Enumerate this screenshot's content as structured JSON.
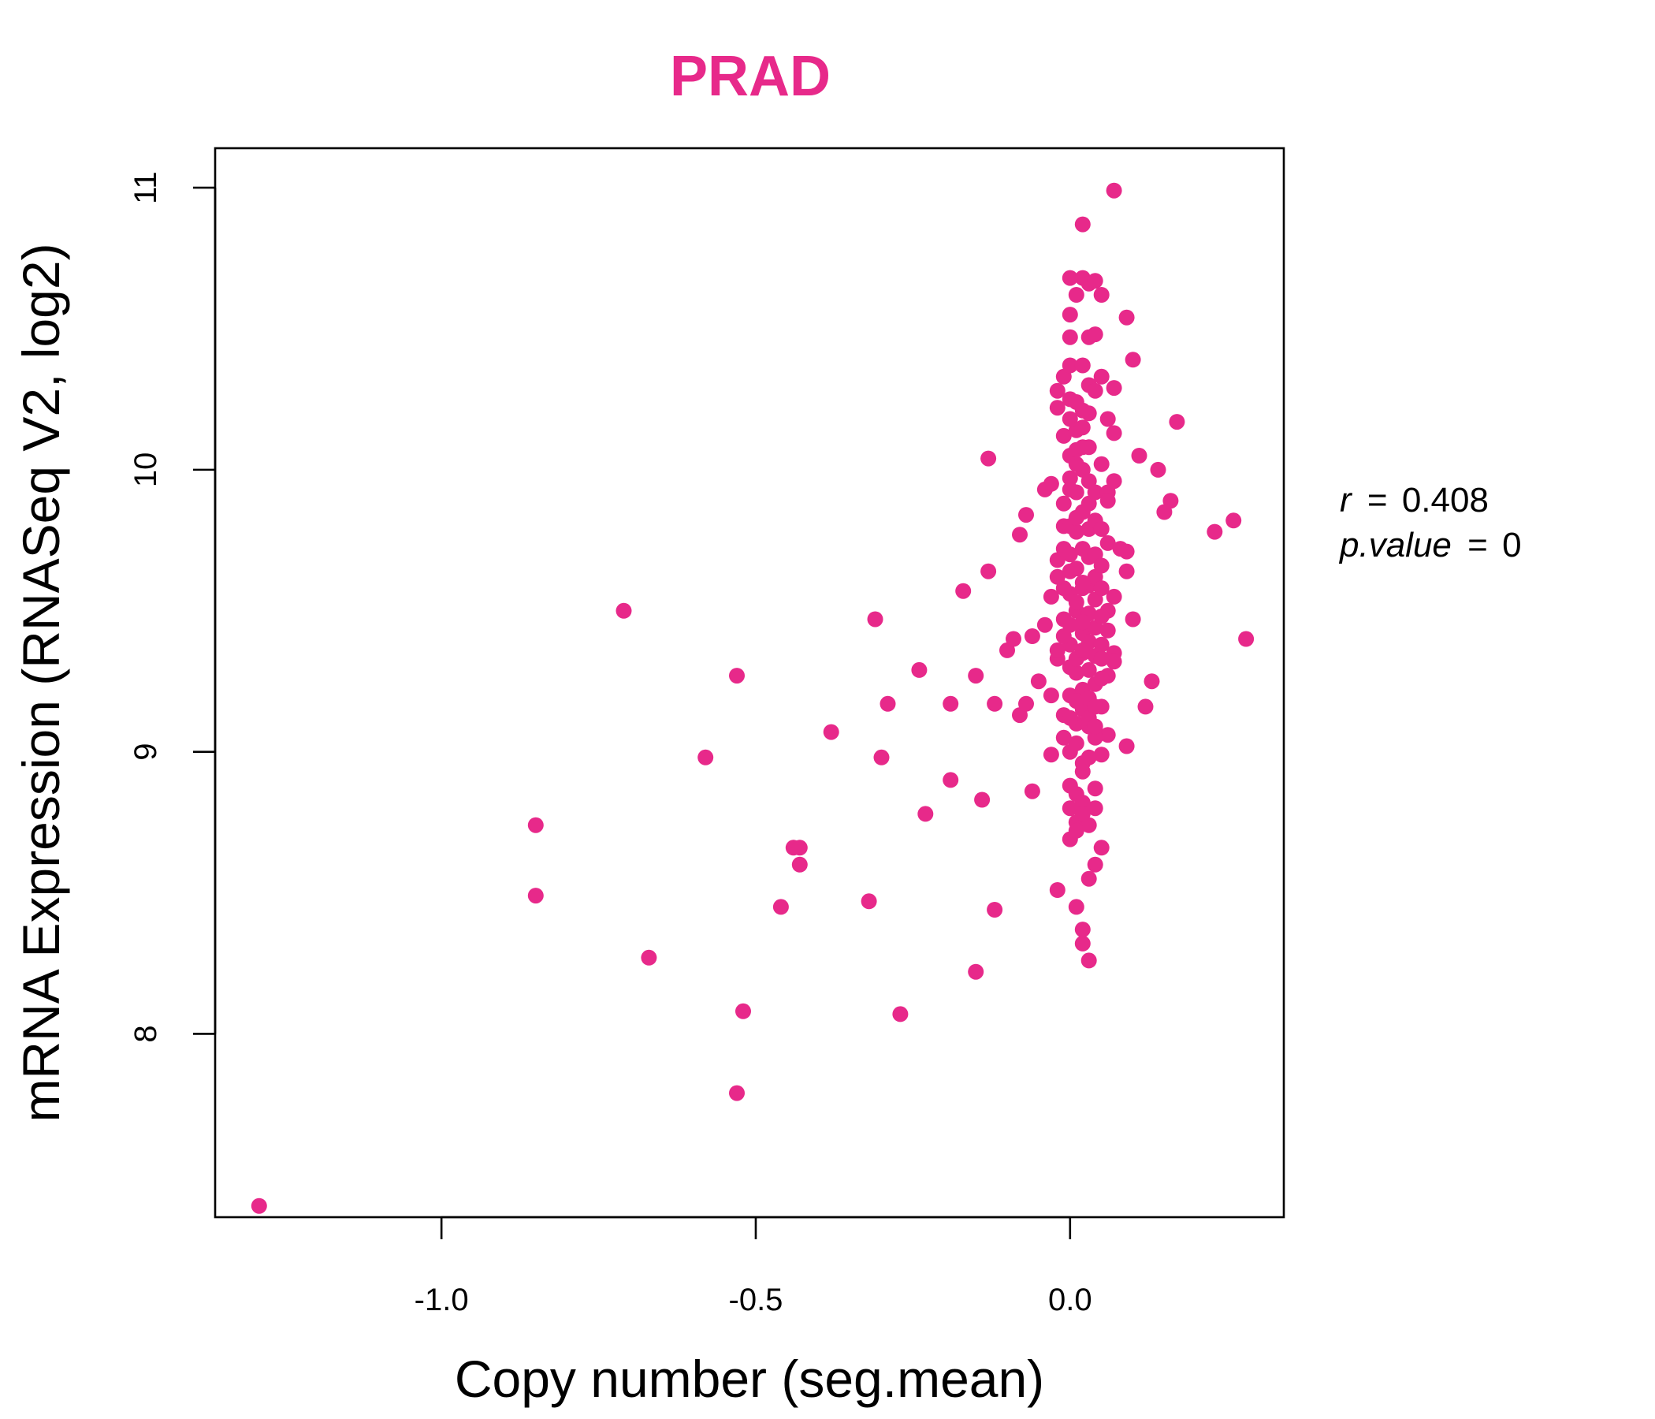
{
  "chart_data": {
    "type": "scatter",
    "title": "PRAD",
    "xlabel": "Copy number (seg.mean)",
    "ylabel": "mRNA Expression (RNASeq V2, log2)",
    "xlim": [
      -1.36,
      0.34
    ],
    "ylim": [
      7.35,
      11.14
    ],
    "xticks": [
      {
        "value": -1.0,
        "label": "-1.0"
      },
      {
        "value": -0.5,
        "label": "-0.5"
      },
      {
        "value": 0.0,
        "label": "0.0"
      }
    ],
    "yticks": [
      {
        "value": 8,
        "label": "8"
      },
      {
        "value": 9,
        "label": "9"
      },
      {
        "value": 10,
        "label": "10"
      },
      {
        "value": 11,
        "label": "11"
      }
    ],
    "grid": false,
    "legend": "none",
    "stats": {
      "r_symbol": "r",
      "r_value": "0.408",
      "p_symbol": "p.value",
      "p_value": "0"
    },
    "colors": {
      "points": "#E7298A",
      "title": "#E7298A",
      "axis": "#000000"
    },
    "series": [
      {
        "color": "#E7298A",
        "points": [
          [
            -1.29,
            7.39
          ],
          [
            -0.85,
            8.74
          ],
          [
            -0.85,
            8.49
          ],
          [
            -0.71,
            9.5
          ],
          [
            -0.67,
            8.27
          ],
          [
            -0.58,
            8.98
          ],
          [
            -0.53,
            9.27
          ],
          [
            -0.52,
            8.08
          ],
          [
            -0.53,
            7.79
          ],
          [
            -0.46,
            8.45
          ],
          [
            -0.44,
            8.66
          ],
          [
            -0.43,
            8.66
          ],
          [
            -0.43,
            8.6
          ],
          [
            -0.38,
            9.07
          ],
          [
            -0.32,
            8.47
          ],
          [
            -0.31,
            9.47
          ],
          [
            -0.3,
            8.98
          ],
          [
            -0.29,
            9.17
          ],
          [
            -0.27,
            8.07
          ],
          [
            -0.24,
            9.29
          ],
          [
            -0.23,
            8.78
          ],
          [
            -0.19,
            9.17
          ],
          [
            -0.19,
            8.9
          ],
          [
            -0.17,
            9.57
          ],
          [
            -0.15,
            9.27
          ],
          [
            -0.15,
            8.22
          ],
          [
            -0.14,
            8.83
          ],
          [
            -0.13,
            10.04
          ],
          [
            -0.13,
            9.64
          ],
          [
            -0.12,
            9.17
          ],
          [
            -0.12,
            8.44
          ],
          [
            -0.1,
            9.36
          ],
          [
            -0.09,
            9.4
          ],
          [
            -0.08,
            9.13
          ],
          [
            -0.07,
            9.17
          ],
          [
            -0.06,
            9.41
          ],
          [
            -0.05,
            9.25
          ],
          [
            -0.04,
            9.45
          ],
          [
            -0.03,
            9.2
          ],
          [
            -0.08,
            9.77
          ],
          [
            -0.07,
            9.84
          ],
          [
            -0.06,
            8.86
          ],
          [
            -0.04,
            9.93
          ],
          [
            -0.03,
            9.95
          ],
          [
            -0.03,
            9.55
          ],
          [
            -0.02,
            9.68
          ],
          [
            -0.01,
            9.8
          ],
          [
            -0.03,
            8.99
          ],
          [
            -0.02,
            10.22
          ],
          [
            -0.02,
            10.28
          ],
          [
            -0.01,
            10.33
          ],
          [
            0.0,
            10.37
          ],
          [
            0.0,
            10.25
          ],
          [
            -0.01,
            10.12
          ],
          [
            0.0,
            10.55
          ],
          [
            0.0,
            10.47
          ],
          [
            0.0,
            10.68
          ],
          [
            0.01,
            10.62
          ],
          [
            0.02,
            10.68
          ],
          [
            0.03,
            10.66
          ],
          [
            0.04,
            10.67
          ],
          [
            0.05,
            10.62
          ],
          [
            0.03,
            10.47
          ],
          [
            0.04,
            10.48
          ],
          [
            0.02,
            10.37
          ],
          [
            0.03,
            10.3
          ],
          [
            0.04,
            10.28
          ],
          [
            0.05,
            10.33
          ],
          [
            0.07,
            10.29
          ],
          [
            0.09,
            10.54
          ],
          [
            0.1,
            10.39
          ],
          [
            0.02,
            10.87
          ],
          [
            0.07,
            10.99
          ],
          [
            0.06,
            10.18
          ],
          [
            0.07,
            10.13
          ],
          [
            0.11,
            10.05
          ],
          [
            0.14,
            10.0
          ],
          [
            0.16,
            9.89
          ],
          [
            0.15,
            9.85
          ],
          [
            0.17,
            10.17
          ],
          [
            0.23,
            9.78
          ],
          [
            0.26,
            9.82
          ],
          [
            0.28,
            9.4
          ],
          [
            0.1,
            9.47
          ],
          [
            0.09,
            9.71
          ],
          [
            0.09,
            9.64
          ],
          [
            0.07,
            9.55
          ],
          [
            0.06,
            9.5
          ],
          [
            0.07,
            9.35
          ],
          [
            0.06,
            9.27
          ],
          [
            0.13,
            9.25
          ],
          [
            0.12,
            9.16
          ],
          [
            0.09,
            9.02
          ],
          [
            0.06,
            9.06
          ],
          [
            0.05,
            9.16
          ],
          [
            0.05,
            8.99
          ],
          [
            0.04,
            8.87
          ],
          [
            0.04,
            8.8
          ],
          [
            0.05,
            8.66
          ],
          [
            0.04,
            8.6
          ],
          [
            0.03,
            8.55
          ],
          [
            -0.02,
            8.51
          ],
          [
            0.01,
            8.45
          ],
          [
            0.02,
            8.37
          ],
          [
            0.02,
            8.32
          ],
          [
            0.03,
            8.26
          ],
          [
            0.0,
            8.69
          ],
          [
            0.01,
            8.75
          ],
          [
            0.03,
            8.74
          ],
          [
            0.0,
            8.8
          ],
          [
            0.0,
            8.88
          ],
          [
            0.02,
            8.93
          ],
          [
            0.0,
            9.0
          ],
          [
            -0.01,
            9.05
          ],
          [
            -0.01,
            9.13
          ],
          [
            0.0,
            9.2
          ],
          [
            0.0,
            9.3
          ],
          [
            0.0,
            9.38
          ],
          [
            -0.01,
            9.47
          ],
          [
            0.0,
            9.56
          ],
          [
            0.0,
            9.64
          ],
          [
            -0.01,
            9.72
          ],
          [
            0.0,
            9.8
          ],
          [
            -0.01,
            9.88
          ],
          [
            0.0,
            9.97
          ],
          [
            0.0,
            10.05
          ],
          [
            0.01,
            10.14
          ],
          [
            0.01,
            9.1
          ],
          [
            0.02,
            9.15
          ],
          [
            0.02,
            9.22
          ],
          [
            0.01,
            9.28
          ],
          [
            0.02,
            9.35
          ],
          [
            0.02,
            9.42
          ],
          [
            0.01,
            9.5
          ],
          [
            0.02,
            9.58
          ],
          [
            0.01,
            9.65
          ],
          [
            0.02,
            9.72
          ],
          [
            0.01,
            9.78
          ],
          [
            0.02,
            9.85
          ],
          [
            0.01,
            9.92
          ],
          [
            0.02,
            10.0
          ],
          [
            0.01,
            10.07
          ],
          [
            0.02,
            10.15
          ],
          [
            0.03,
            10.2
          ],
          [
            0.03,
            10.08
          ],
          [
            0.03,
            9.96
          ],
          [
            0.03,
            9.88
          ],
          [
            0.03,
            9.79
          ],
          [
            0.03,
            9.69
          ],
          [
            0.03,
            9.59
          ],
          [
            0.03,
            9.49
          ],
          [
            0.03,
            9.39
          ],
          [
            0.03,
            9.29
          ],
          [
            0.03,
            9.19
          ],
          [
            0.03,
            9.09
          ],
          [
            0.04,
            9.24
          ],
          [
            0.04,
            9.34
          ],
          [
            0.04,
            9.44
          ],
          [
            0.04,
            9.54
          ],
          [
            0.04,
            9.62
          ],
          [
            0.04,
            9.7
          ],
          [
            0.04,
            9.82
          ],
          [
            0.04,
            9.92
          ],
          [
            0.05,
            10.02
          ],
          [
            0.05,
            9.48
          ],
          [
            0.05,
            9.38
          ],
          [
            0.05,
            9.58
          ],
          [
            0.05,
            9.66
          ],
          [
            0.06,
            9.74
          ],
          [
            0.06,
            9.92
          ],
          [
            0.07,
            9.96
          ],
          [
            0.08,
            9.72
          ],
          [
            0.06,
            9.43
          ],
          [
            0.07,
            9.32
          ],
          [
            0.05,
            9.26
          ],
          [
            0.01,
            9.03
          ],
          [
            0.02,
            8.96
          ],
          [
            0.03,
            8.98
          ],
          [
            0.01,
            8.85
          ],
          [
            0.02,
            8.82
          ],
          [
            0.01,
            8.72
          ],
          [
            0.02,
            8.78
          ],
          [
            0.0,
            9.12
          ],
          [
            0.01,
            9.18
          ],
          [
            0.01,
            9.33
          ],
          [
            0.0,
            9.45
          ],
          [
            0.01,
            9.53
          ],
          [
            0.0,
            9.7
          ],
          [
            0.01,
            9.83
          ],
          [
            0.0,
            9.93
          ],
          [
            0.01,
            10.02
          ],
          [
            0.02,
            10.08
          ],
          [
            0.0,
            10.18
          ],
          [
            0.01,
            10.24
          ],
          [
            0.02,
            10.21
          ],
          [
            0.02,
            9.6
          ],
          [
            0.02,
            9.46
          ],
          [
            0.02,
            9.36
          ],
          [
            0.03,
            9.12
          ],
          [
            0.04,
            9.05
          ],
          [
            -0.01,
            9.41
          ],
          [
            -0.02,
            9.33
          ],
          [
            -0.02,
            9.36
          ],
          [
            -0.01,
            9.58
          ],
          [
            -0.02,
            9.62
          ],
          [
            0.04,
            9.09
          ],
          [
            0.04,
            9.16
          ],
          [
            0.05,
            9.33
          ],
          [
            0.05,
            9.79
          ],
          [
            0.06,
            9.89
          ]
        ]
      }
    ]
  }
}
